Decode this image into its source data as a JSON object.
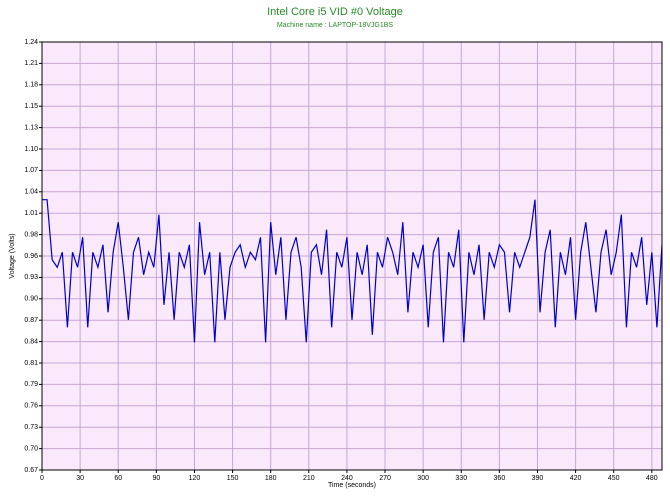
{
  "chart_data": {
    "type": "line",
    "title": "Intel Core i5 VID #0 Voltage",
    "subtitle": "Machine name : LAPTOP-18VJG1BS",
    "x_label": "Time (seconds)",
    "y_label": "Voltage (Volts)",
    "xlim": [
      0,
      488
    ],
    "xticks": [
      0,
      30,
      60,
      90,
      120,
      150,
      180,
      210,
      240,
      270,
      300,
      330,
      360,
      390,
      420,
      450,
      480
    ],
    "ylim": [
      0.67,
      1.24
    ],
    "yticks": [
      {
        "value": 0.67,
        "label": "0.67"
      },
      {
        "value": 0.6985,
        "label": "0.70"
      },
      {
        "value": 0.727,
        "label": "0.73"
      },
      {
        "value": 0.7555,
        "label": "0.76"
      },
      {
        "value": 0.784,
        "label": "0.79"
      },
      {
        "value": 0.8125,
        "label": "0.81"
      },
      {
        "value": 0.841,
        "label": "0.84"
      },
      {
        "value": 0.8695,
        "label": "0.87"
      },
      {
        "value": 0.898,
        "label": "0.90"
      },
      {
        "value": 0.9265,
        "label": "0.93"
      },
      {
        "value": 0.955,
        "label": "0.96"
      },
      {
        "value": 0.9835,
        "label": "0.98"
      },
      {
        "value": 1.012,
        "label": "1.01"
      },
      {
        "value": 1.0405,
        "label": "1.04"
      },
      {
        "value": 1.069,
        "label": "1.07"
      },
      {
        "value": 1.0975,
        "label": "1.10"
      },
      {
        "value": 1.126,
        "label": "1.13"
      },
      {
        "value": 1.1545,
        "label": "1.15"
      },
      {
        "value": 1.183,
        "label": "1.18"
      },
      {
        "value": 1.2115,
        "label": "1.21"
      },
      {
        "value": 1.24,
        "label": "1.24"
      }
    ],
    "grid": true,
    "x": [
      0,
      4,
      8,
      12,
      16,
      20,
      24,
      28,
      32,
      36,
      40,
      44,
      48,
      52,
      56,
      60,
      64,
      68,
      72,
      76,
      80,
      84,
      88,
      92,
      96,
      100,
      104,
      108,
      112,
      116,
      120,
      124,
      128,
      132,
      136,
      140,
      144,
      148,
      152,
      156,
      160,
      164,
      168,
      172,
      176,
      180,
      184,
      188,
      192,
      196,
      200,
      204,
      208,
      212,
      216,
      220,
      224,
      228,
      232,
      236,
      240,
      244,
      248,
      252,
      256,
      260,
      264,
      268,
      272,
      276,
      280,
      284,
      288,
      292,
      296,
      300,
      304,
      308,
      312,
      316,
      320,
      324,
      328,
      332,
      336,
      340,
      344,
      348,
      352,
      356,
      360,
      364,
      368,
      372,
      376,
      380,
      384,
      388,
      392,
      396,
      400,
      404,
      408,
      412,
      416,
      420,
      424,
      428,
      432,
      436,
      440,
      444,
      448,
      452,
      456,
      460,
      464,
      468,
      472,
      476,
      480,
      484,
      488
    ],
    "series": [
      {
        "color": "#0000cc",
        "values": [
          1.03,
          1.03,
          0.95,
          0.94,
          0.96,
          0.86,
          0.96,
          0.94,
          0.98,
          0.86,
          0.96,
          0.94,
          0.97,
          0.88,
          0.96,
          1.0,
          0.94,
          0.87,
          0.96,
          0.98,
          0.93,
          0.96,
          0.94,
          1.01,
          0.89,
          0.96,
          0.87,
          0.96,
          0.94,
          0.97,
          0.84,
          1.0,
          0.93,
          0.96,
          0.84,
          0.96,
          0.87,
          0.94,
          0.96,
          0.97,
          0.94,
          0.96,
          0.95,
          0.98,
          0.84,
          1.0,
          0.93,
          0.98,
          0.87,
          0.96,
          0.98,
          0.94,
          0.84,
          0.96,
          0.97,
          0.93,
          0.99,
          0.86,
          0.96,
          0.94,
          0.98,
          0.87,
          0.96,
          0.93,
          0.97,
          0.85,
          0.96,
          0.94,
          0.98,
          0.96,
          0.93,
          1.0,
          0.88,
          0.96,
          0.94,
          0.97,
          0.86,
          0.96,
          0.98,
          0.84,
          0.96,
          0.94,
          0.99,
          0.84,
          0.96,
          0.93,
          0.97,
          0.87,
          0.96,
          0.94,
          0.97,
          0.96,
          0.88,
          0.96,
          0.94,
          0.96,
          0.98,
          1.03,
          0.88,
          0.96,
          0.99,
          0.86,
          0.96,
          0.93,
          0.98,
          0.87,
          0.96,
          1.0,
          0.94,
          0.88,
          0.96,
          0.99,
          0.93,
          0.96,
          1.01,
          0.86,
          0.96,
          0.94,
          0.98,
          0.89,
          0.96,
          0.86,
          0.97
        ]
      }
    ]
  }
}
